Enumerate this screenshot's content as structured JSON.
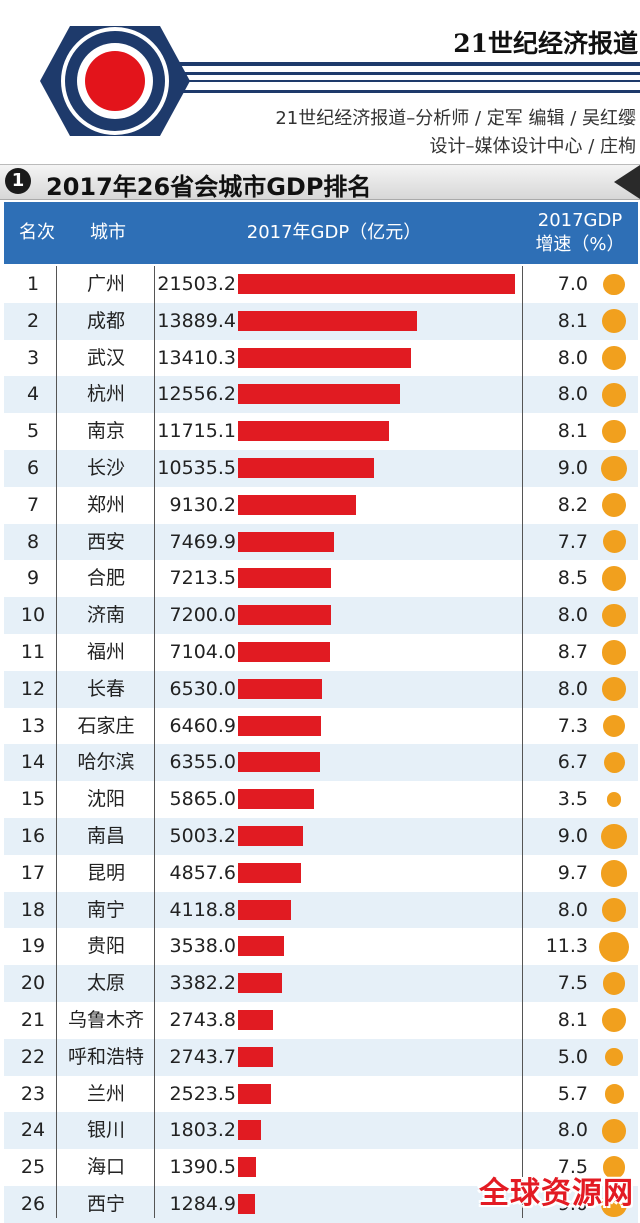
{
  "masthead": {
    "publication": "21世纪经济报道",
    "credit_line1": "21世纪经济报道–分析师 / 定军    编辑 / 吴红缨",
    "credit_line2": "设计–媒体设计中心 / 庄栒",
    "colors": {
      "navy": "#1e3a6b",
      "logo_red": "#e3141b"
    }
  },
  "section": {
    "number": "1",
    "title": "2017年26省会城市GDP排名"
  },
  "table": {
    "headers": {
      "rank": "名次",
      "city": "城市",
      "gdp": "2017年GDP（亿元）",
      "growth_line1": "2017GDP",
      "growth_line2": "增速（%）"
    },
    "header_color": "#2e6fb6",
    "bar_color": "#e11b22",
    "dot_color": "#f1a01e",
    "stripe_color": "#e6f0f8"
  },
  "chart_data": {
    "type": "bar",
    "orientation": "horizontal",
    "categories": [
      "广州",
      "成都",
      "武汉",
      "杭州",
      "南京",
      "长沙",
      "郑州",
      "西安",
      "合肥",
      "济南",
      "福州",
      "长春",
      "石家庄",
      "哈尔滨",
      "沈阳",
      "南昌",
      "昆明",
      "南宁",
      "贵阳",
      "太原",
      "乌鲁木齐",
      "呼和浩特",
      "兰州",
      "银川",
      "海口",
      "西宁"
    ],
    "ranks": [
      "1",
      "2",
      "3",
      "4",
      "5",
      "6",
      "7",
      "8",
      "9",
      "10",
      "11",
      "12",
      "13",
      "14",
      "15",
      "16",
      "17",
      "18",
      "19",
      "20",
      "21",
      "22",
      "23",
      "24",
      "25",
      "26"
    ],
    "series": [
      {
        "values": [
          21503.2,
          13889.4,
          13410.3,
          12556.2,
          11715.1,
          10535.5,
          9130.2,
          7469.9,
          7213.5,
          7200.0,
          7104.0,
          6530.0,
          6460.9,
          6355.0,
          5865.0,
          5003.2,
          4857.6,
          4118.8,
          3538.0,
          3382.2,
          2743.8,
          2743.7,
          2523.5,
          1803.2,
          1390.5,
          1284.9
        ]
      },
      {
        "values": [
          7.0,
          8.1,
          8.0,
          8.0,
          8.1,
          9.0,
          8.2,
          7.7,
          8.5,
          8.0,
          8.7,
          8.0,
          7.3,
          6.7,
          3.5,
          9.0,
          9.7,
          8.0,
          11.3,
          7.5,
          8.1,
          5.0,
          5.7,
          8.0,
          7.5,
          9.0
        ]
      }
    ],
    "value_labels": [
      "21503.2",
      "13889.4",
      "13410.3",
      "12556.2",
      "11715.1",
      "10535.5",
      "9130.2",
      "7469.9",
      "7213.5",
      "7200.0",
      "7104.0",
      "6530.0",
      "6460.9",
      "6355.0",
      "5865.0",
      "5003.2",
      "4857.6",
      "4118.8",
      "3538.0",
      "3382.2",
      "2743.8",
      "2743.7",
      "2523.5",
      "1803.2",
      "1390.5",
      "1284.9"
    ],
    "growth_labels": [
      "7.0",
      "8.1",
      "8.0",
      "8.0",
      "8.1",
      "9.0",
      "8.2",
      "7.7",
      "8.5",
      "8.0",
      "8.7",
      "8.0",
      "7.3",
      "6.7",
      "3.5",
      "9.0",
      "9.7",
      "8.0",
      "11.3",
      "7.5",
      "8.1",
      "5.0",
      "5.7",
      "8.0",
      "7.5",
      "9.0"
    ],
    "title": "2017年26省会城市GDP排名",
    "xlim": [
      0,
      21503.2
    ],
    "grid": false
  },
  "watermark": "全球资源网"
}
